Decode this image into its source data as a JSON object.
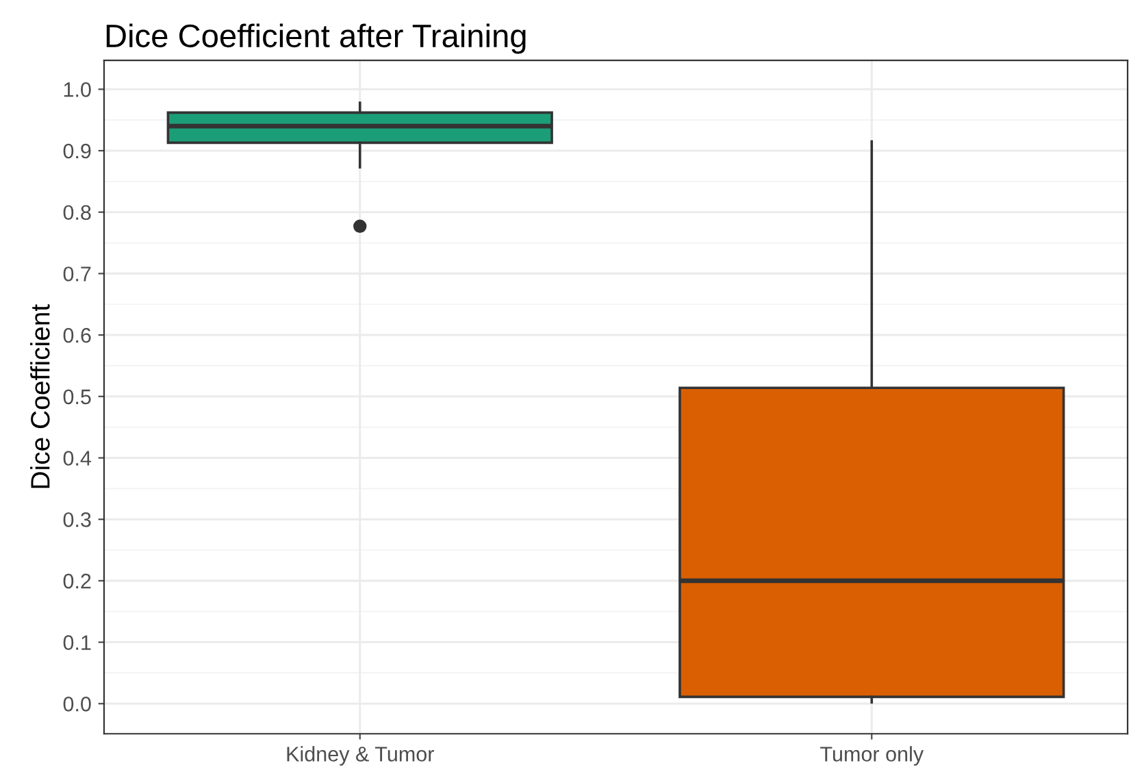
{
  "chart_data": {
    "type": "box",
    "title": "Dice Coefficient after Training",
    "ylabel": "Dice Coefficient",
    "categories": [
      "Kidney & Tumor",
      "Tumor only"
    ],
    "colors": [
      "#1b9e77",
      "#d95f02"
    ],
    "boxes": [
      {
        "low": 0.873,
        "q1": 0.913,
        "median": 0.94,
        "q3": 0.962,
        "high": 0.978,
        "outliers": [
          0.777
        ]
      },
      {
        "low": 0.002,
        "q1": 0.011,
        "median": 0.2,
        "q3": 0.514,
        "high": 0.915
      }
    ],
    "ylim": [
      -0.049,
      1.047
    ],
    "yticks": [
      {
        "value": 0,
        "label": "0.0"
      },
      0.1,
      0.2,
      0.3,
      0.4,
      0.5,
      0.6,
      0.7,
      0.8,
      0.9,
      {
        "value": 1,
        "label": "1.0"
      }
    ],
    "grid": true
  }
}
